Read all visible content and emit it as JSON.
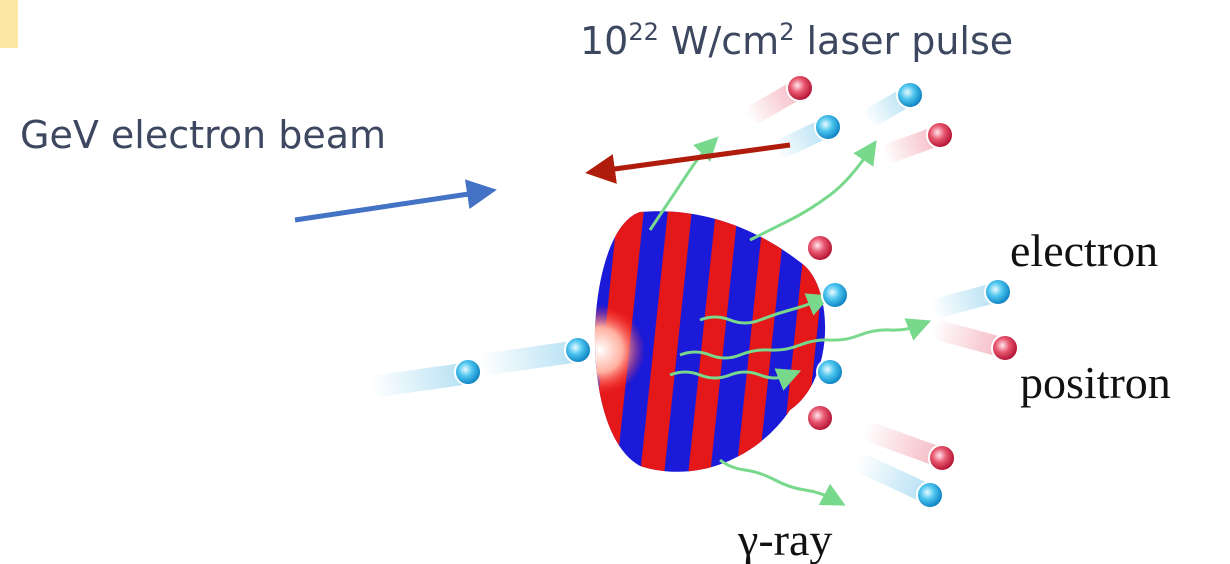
{
  "labels": {
    "laser": {
      "base": "10",
      "exponent": "22",
      "unit": "W/cm",
      "unit_exponent": "2",
      "rest": "laser pulse"
    },
    "beam": "GeV electron beam",
    "electron": "electron",
    "positron": "positron",
    "gamma": "γ-ray"
  }
}
